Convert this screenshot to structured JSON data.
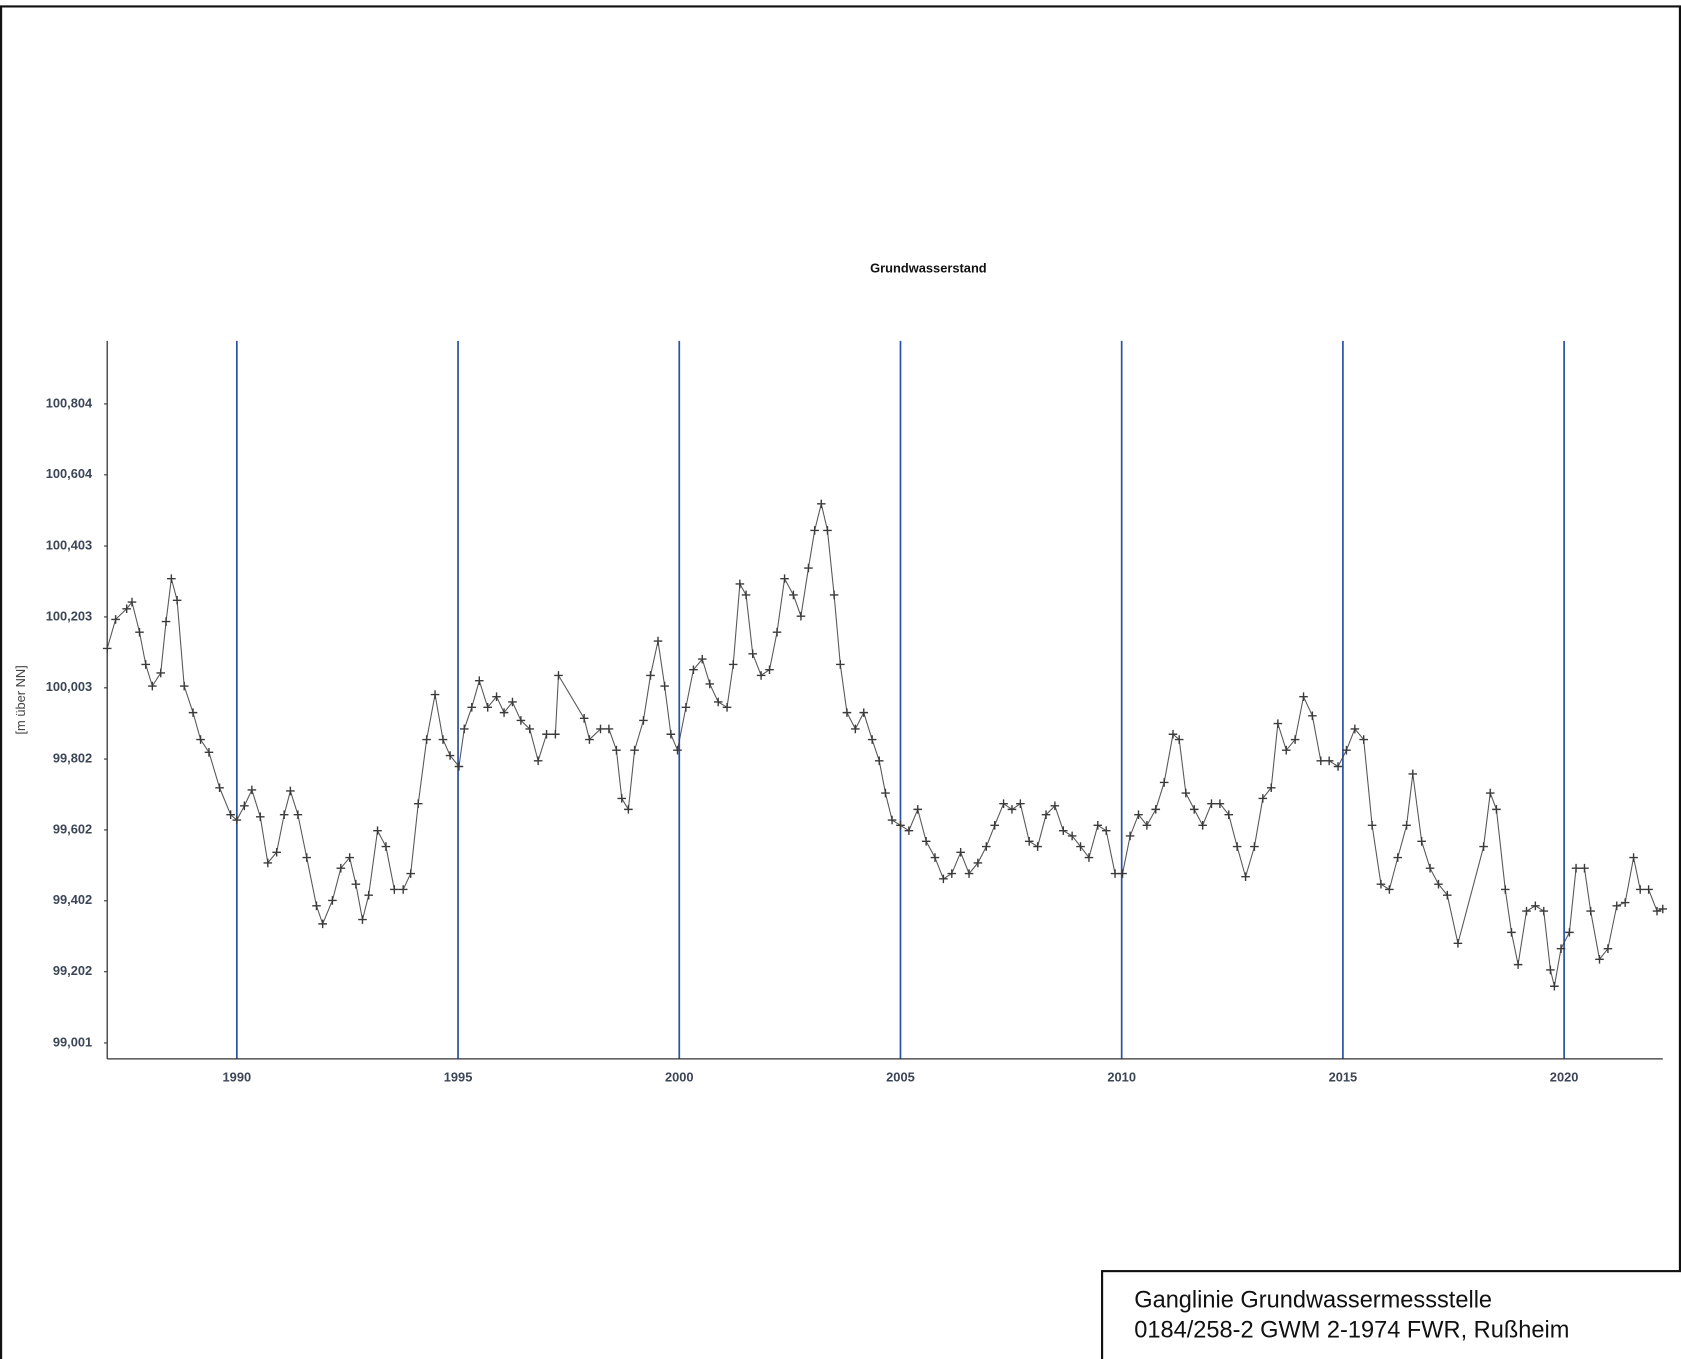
{
  "chart_data": {
    "type": "line",
    "title": "Grundwasserstand",
    "ylabel": "[m über NN]",
    "box_lines": [
      "Ganglinie Grundwassermessstelle",
      "0184/258-2 GWM 2-1974 FWR, Rußheim"
    ],
    "xlim": [
      1987.07,
      2022.23
    ],
    "xticks": [
      1990,
      1995,
      2000,
      2005,
      2010,
      2015,
      2020
    ],
    "ylim": [
      98.956,
      100.982
    ],
    "yticks": [
      {
        "value": 99.001,
        "label": "99,001"
      },
      {
        "value": 99.202,
        "label": "99,202"
      },
      {
        "value": 99.402,
        "label": "99,402"
      },
      {
        "value": 99.602,
        "label": "99,602"
      },
      {
        "value": 99.802,
        "label": "99,802"
      },
      {
        "value": 100.003,
        "label": "100,003"
      },
      {
        "value": 100.203,
        "label": "100,203"
      },
      {
        "value": 100.403,
        "label": "100,403"
      },
      {
        "value": 100.604,
        "label": "100,604"
      },
      {
        "value": 100.804,
        "label": "100,804"
      }
    ],
    "grid": "x",
    "grid_color": "#2a52a8",
    "x": [
      1987.07,
      1987.26,
      1987.51,
      1987.63,
      1987.8,
      1987.94,
      1988.09,
      1988.28,
      1988.4,
      1988.52,
      1988.65,
      1988.81,
      1989.01,
      1989.18,
      1989.37,
      1989.61,
      1989.86,
      1990.0,
      1990.17,
      1990.34,
      1990.53,
      1990.7,
      1990.9,
      1991.07,
      1991.21,
      1991.38,
      1991.58,
      1991.8,
      1991.94,
      1992.16,
      1992.35,
      1992.55,
      1992.69,
      1992.84,
      1992.98,
      1993.18,
      1993.37,
      1993.56,
      1993.76,
      1993.93,
      1994.1,
      1994.29,
      1994.48,
      1994.66,
      1994.82,
      1995.02,
      1995.14,
      1995.31,
      1995.48,
      1995.67,
      1995.87,
      1996.04,
      1996.23,
      1996.42,
      1996.62,
      1996.81,
      1997.0,
      1997.2,
      1997.27,
      1997.85,
      1997.97,
      1998.22,
      1998.41,
      1998.58,
      1998.7,
      1998.85,
      1998.99,
      1999.19,
      1999.35,
      1999.52,
      1999.67,
      1999.81,
      1999.96,
      2000.15,
      2000.32,
      2000.52,
      2000.69,
      2000.88,
      2001.08,
      2001.22,
      2001.37,
      2001.51,
      2001.66,
      2001.85,
      2002.04,
      2002.21,
      2002.38,
      2002.58,
      2002.75,
      2002.92,
      2003.06,
      2003.21,
      2003.35,
      2003.5,
      2003.64,
      2003.79,
      2003.98,
      2004.17,
      2004.36,
      2004.52,
      2004.66,
      2004.81,
      2005.0,
      2005.19,
      2005.39,
      2005.58,
      2005.78,
      2005.97,
      2006.16,
      2006.36,
      2006.55,
      2006.75,
      2006.94,
      2007.13,
      2007.33,
      2007.52,
      2007.71,
      2007.91,
      2008.1,
      2008.29,
      2008.49,
      2008.68,
      2008.88,
      2009.07,
      2009.26,
      2009.46,
      2009.65,
      2009.85,
      2010.02,
      2010.19,
      2010.38,
      2010.57,
      2010.77,
      2010.96,
      2011.16,
      2011.3,
      2011.45,
      2011.64,
      2011.83,
      2012.03,
      2012.22,
      2012.42,
      2012.61,
      2012.8,
      2013.0,
      2013.19,
      2013.38,
      2013.53,
      2013.72,
      2013.92,
      2014.11,
      2014.31,
      2014.5,
      2014.69,
      2014.89,
      2015.08,
      2015.27,
      2015.47,
      2015.66,
      2015.86,
      2016.05,
      2016.24,
      2016.44,
      2016.58,
      2016.78,
      2016.97,
      2017.16,
      2017.36,
      2017.6,
      2018.18,
      2018.33,
      2018.47,
      2018.67,
      2018.81,
      2018.96,
      2019.15,
      2019.35,
      2019.54,
      2019.69,
      2019.78,
      2019.93,
      2020.12,
      2020.27,
      2020.46,
      2020.6,
      2020.8,
      2020.99,
      2021.19,
      2021.38,
      2021.57,
      2021.72,
      2021.91,
      2022.1,
      2022.23
    ],
    "series": [
      {
        "name": "Grundwasserstand",
        "color": "#3a3a3a",
        "values": [
          100.114,
          100.196,
          100.226,
          100.245,
          100.16,
          100.069,
          100.008,
          100.045,
          100.19,
          100.311,
          100.25,
          100.008,
          99.933,
          99.857,
          99.821,
          99.721,
          99.645,
          99.63,
          99.67,
          99.715,
          99.639,
          99.509,
          99.539,
          99.645,
          99.712,
          99.645,
          99.524,
          99.388,
          99.337,
          99.403,
          99.494,
          99.524,
          99.449,
          99.349,
          99.418,
          99.6,
          99.555,
          99.434,
          99.434,
          99.479,
          99.676,
          99.857,
          99.984,
          99.857,
          99.812,
          99.781,
          99.887,
          99.948,
          100.023,
          99.948,
          99.978,
          99.933,
          99.963,
          99.911,
          99.887,
          99.797,
          99.872,
          99.872,
          100.038,
          99.917,
          99.857,
          99.887,
          99.887,
          99.827,
          99.691,
          99.66,
          99.827,
          99.911,
          100.038,
          100.135,
          100.008,
          99.872,
          99.827,
          99.948,
          100.054,
          100.084,
          100.014,
          99.963,
          99.948,
          100.069,
          100.296,
          100.265,
          100.099,
          100.038,
          100.054,
          100.16,
          100.311,
          100.265,
          100.205,
          100.341,
          100.447,
          100.522,
          100.447,
          100.265,
          100.069,
          99.933,
          99.887,
          99.933,
          99.857,
          99.797,
          99.706,
          99.63,
          99.615,
          99.6,
          99.66,
          99.57,
          99.524,
          99.464,
          99.479,
          99.539,
          99.479,
          99.509,
          99.555,
          99.615,
          99.676,
          99.66,
          99.676,
          99.57,
          99.555,
          99.645,
          99.67,
          99.6,
          99.585,
          99.555,
          99.524,
          99.615,
          99.6,
          99.479,
          99.479,
          99.585,
          99.645,
          99.615,
          99.66,
          99.736,
          99.872,
          99.857,
          99.706,
          99.66,
          99.615,
          99.676,
          99.676,
          99.645,
          99.555,
          99.47,
          99.555,
          99.691,
          99.721,
          99.902,
          99.827,
          99.857,
          99.978,
          99.924,
          99.797,
          99.797,
          99.781,
          99.827,
          99.887,
          99.857,
          99.615,
          99.449,
          99.434,
          99.524,
          99.615,
          99.76,
          99.57,
          99.494,
          99.449,
          99.418,
          99.282,
          99.555,
          99.706,
          99.66,
          99.434,
          99.313,
          99.222,
          99.373,
          99.388,
          99.373,
          99.207,
          99.161,
          99.267,
          99.313,
          99.494,
          99.494,
          99.373,
          99.237,
          99.267,
          99.388,
          99.397,
          99.524,
          99.434,
          99.434,
          99.373,
          99.379
        ]
      }
    ]
  }
}
